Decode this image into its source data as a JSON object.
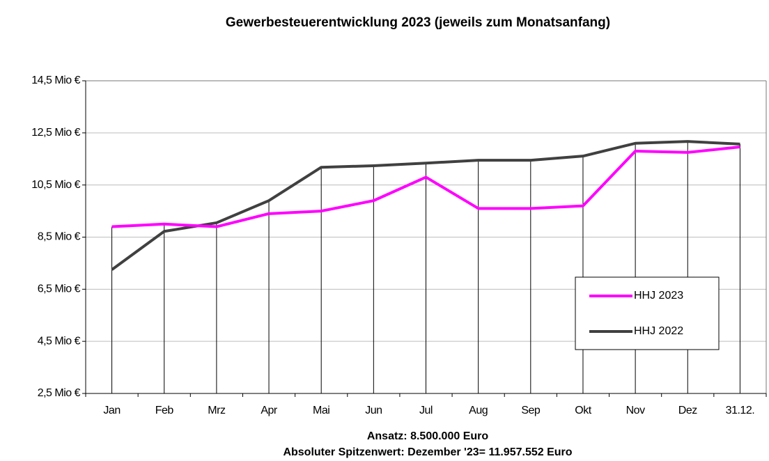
{
  "chart_data": {
    "type": "line",
    "title": "Gewerbesteuerentwicklung 2023 (jeweils zum Monatsanfang)",
    "categories": [
      "Jan",
      "Feb",
      "Mrz",
      "Apr",
      "Mai",
      "Jun",
      "Jul",
      "Aug",
      "Sep",
      "Okt",
      "Nov",
      "Dez",
      "31.12."
    ],
    "series": [
      {
        "name": "HHJ 2023",
        "color": "#ff00ff",
        "values": [
          8.9,
          9.0,
          8.9,
          9.4,
          9.5,
          9.9,
          10.8,
          9.6,
          9.6,
          9.7,
          11.8,
          11.75,
          11.96
        ]
      },
      {
        "name": "HHJ 2022",
        "color": "#404040",
        "values": [
          7.25,
          8.72,
          9.05,
          9.9,
          11.18,
          11.24,
          11.34,
          11.45,
          11.45,
          11.61,
          12.1,
          12.17,
          12.07
        ]
      }
    ],
    "ylim": [
      2.5,
      14.5
    ],
    "yticks": [
      {
        "value": 2.5,
        "label": "2,5 Mio €"
      },
      {
        "value": 4.5,
        "label": "4,5 Mio €"
      },
      {
        "value": 6.5,
        "label": "6,5 Mio €"
      },
      {
        "value": 8.5,
        "label": "8,5 Mio €"
      },
      {
        "value": 10.5,
        "label": "10,5 Mio €"
      },
      {
        "value": 12.5,
        "label": "12,5 Mio €"
      },
      {
        "value": 14.5,
        "label": "14,5 Mio €"
      }
    ],
    "grid": true,
    "drop_lines": true,
    "legend": "lower right",
    "annotations": [
      "Ansatz: 8.500.000 Euro",
      "Absoluter Spitzenwert: Dezember '23= 11.957.552 Euro"
    ]
  }
}
